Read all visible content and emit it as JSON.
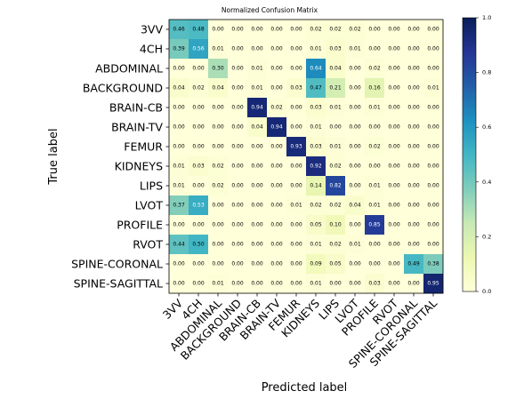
{
  "chart_data": {
    "type": "heatmap",
    "title": "Normalized Confusion Matrix",
    "xlabel": "Predicted label",
    "ylabel": "True label",
    "categories": [
      "3VV",
      "4CH",
      "ABDOMINAL",
      "BACKGROUND",
      "BRAIN-CB",
      "BRAIN-TV",
      "FEMUR",
      "KIDNEYS",
      "LIPS",
      "LVOT",
      "PROFILE",
      "RVOT",
      "SPINE-CORONAL",
      "SPINE-SAGITTAL"
    ],
    "matrix": [
      [
        0.46,
        0.48,
        0.0,
        0.0,
        0.0,
        0.0,
        0.0,
        0.02,
        0.02,
        0.02,
        0.0,
        0.0,
        0.0,
        0.0
      ],
      [
        0.39,
        0.56,
        0.01,
        0.0,
        0.0,
        0.0,
        0.0,
        0.01,
        0.03,
        0.01,
        0.0,
        0.0,
        0.0,
        0.0
      ],
      [
        0.0,
        0.0,
        0.3,
        0.0,
        0.01,
        0.0,
        0.0,
        0.64,
        0.04,
        0.0,
        0.02,
        0.0,
        0.0,
        0.0
      ],
      [
        0.04,
        0.02,
        0.04,
        0.0,
        0.01,
        0.0,
        0.03,
        0.47,
        0.21,
        0.0,
        0.16,
        0.0,
        0.0,
        0.01
      ],
      [
        0.0,
        0.0,
        0.0,
        0.0,
        0.94,
        0.02,
        0.0,
        0.03,
        0.01,
        0.0,
        0.01,
        0.0,
        0.0,
        0.0
      ],
      [
        0.0,
        0.0,
        0.0,
        0.0,
        0.04,
        0.94,
        0.0,
        0.01,
        0.0,
        0.0,
        0.0,
        0.0,
        0.0,
        0.0
      ],
      [
        0.0,
        0.0,
        0.0,
        0.0,
        0.0,
        0.0,
        0.93,
        0.03,
        0.01,
        0.0,
        0.02,
        0.0,
        0.0,
        0.0
      ],
      [
        0.01,
        0.03,
        0.02,
        0.0,
        0.0,
        0.0,
        0.0,
        0.92,
        0.02,
        0.0,
        0.0,
        0.0,
        0.0,
        0.0
      ],
      [
        0.01,
        0.0,
        0.02,
        0.0,
        0.0,
        0.0,
        0.0,
        0.14,
        0.82,
        0.0,
        0.01,
        0.0,
        0.0,
        0.0
      ],
      [
        0.37,
        0.53,
        0.0,
        0.0,
        0.0,
        0.0,
        0.01,
        0.02,
        0.02,
        0.04,
        0.01,
        0.0,
        0.0,
        0.0
      ],
      [
        0.0,
        0.0,
        0.0,
        0.0,
        0.0,
        0.0,
        0.0,
        0.05,
        0.1,
        0.0,
        0.85,
        0.0,
        0.0,
        0.0
      ],
      [
        0.44,
        0.5,
        0.0,
        0.0,
        0.0,
        0.0,
        0.0,
        0.01,
        0.02,
        0.01,
        0.0,
        0.0,
        0.0,
        0.0
      ],
      [
        0.0,
        0.0,
        0.0,
        0.0,
        0.0,
        0.0,
        0.0,
        0.09,
        0.05,
        0.0,
        0.0,
        0.0,
        0.49,
        0.38
      ],
      [
        0.0,
        0.0,
        0.01,
        0.0,
        0.0,
        0.0,
        0.0,
        0.01,
        0.0,
        0.0,
        0.03,
        0.0,
        0.0,
        0.95
      ]
    ],
    "value_range": [
      0.0,
      1.0
    ],
    "colormap": "YlGnBu",
    "colorbar_ticks": [
      "0.0",
      "0.2",
      "0.4",
      "0.6",
      "0.8",
      "1.0"
    ],
    "grid": false
  }
}
